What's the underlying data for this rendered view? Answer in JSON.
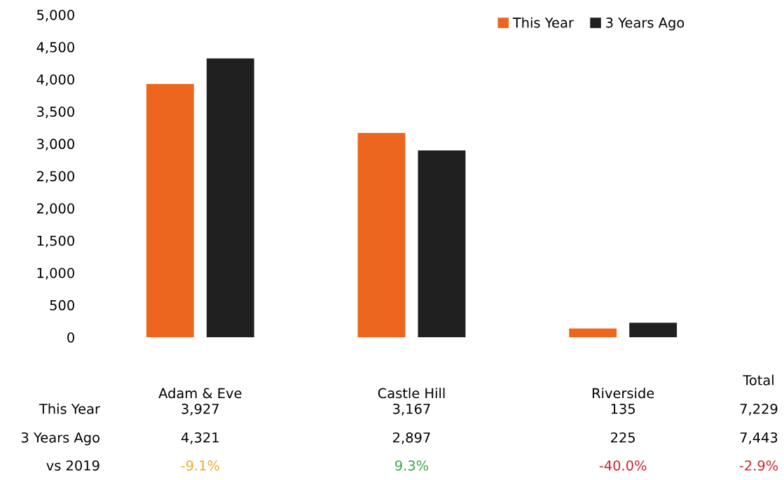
{
  "chart_data": {
    "type": "bar",
    "categories": [
      "Adam & Eve",
      "Castle Hill",
      "Riverside"
    ],
    "series": [
      {
        "name": "This Year",
        "color": "#ec671d",
        "values": [
          3927,
          3167,
          135
        ],
        "value_labels": [
          "3,927",
          "3,167",
          "135"
        ]
      },
      {
        "name": "3 Years Ago",
        "color": "#202020",
        "values": [
          4321,
          2897,
          225
        ],
        "value_labels": [
          "4,321",
          "2,897",
          "225"
        ]
      }
    ],
    "ylim": [
      0,
      5000
    ],
    "yticks": [
      {
        "value": 0,
        "label": "0"
      },
      {
        "value": 500,
        "label": "500"
      },
      {
        "value": 1000,
        "label": "1,000"
      },
      {
        "value": 1500,
        "label": "1,500"
      },
      {
        "value": 2000,
        "label": "2,000"
      },
      {
        "value": 2500,
        "label": "2,500"
      },
      {
        "value": 3000,
        "label": "3,000"
      },
      {
        "value": 3500,
        "label": "3,500"
      },
      {
        "value": 4000,
        "label": "4,000"
      },
      {
        "value": 4500,
        "label": "4,500"
      },
      {
        "value": 5000,
        "label": "5,000"
      }
    ],
    "grid": false,
    "legend": "top right",
    "annotations": [
      "Total",
      "7,229",
      "7,443",
      "vs 2019",
      "-9.1%",
      "9.3%",
      "-40.0%",
      "-2.9%"
    ]
  }
}
